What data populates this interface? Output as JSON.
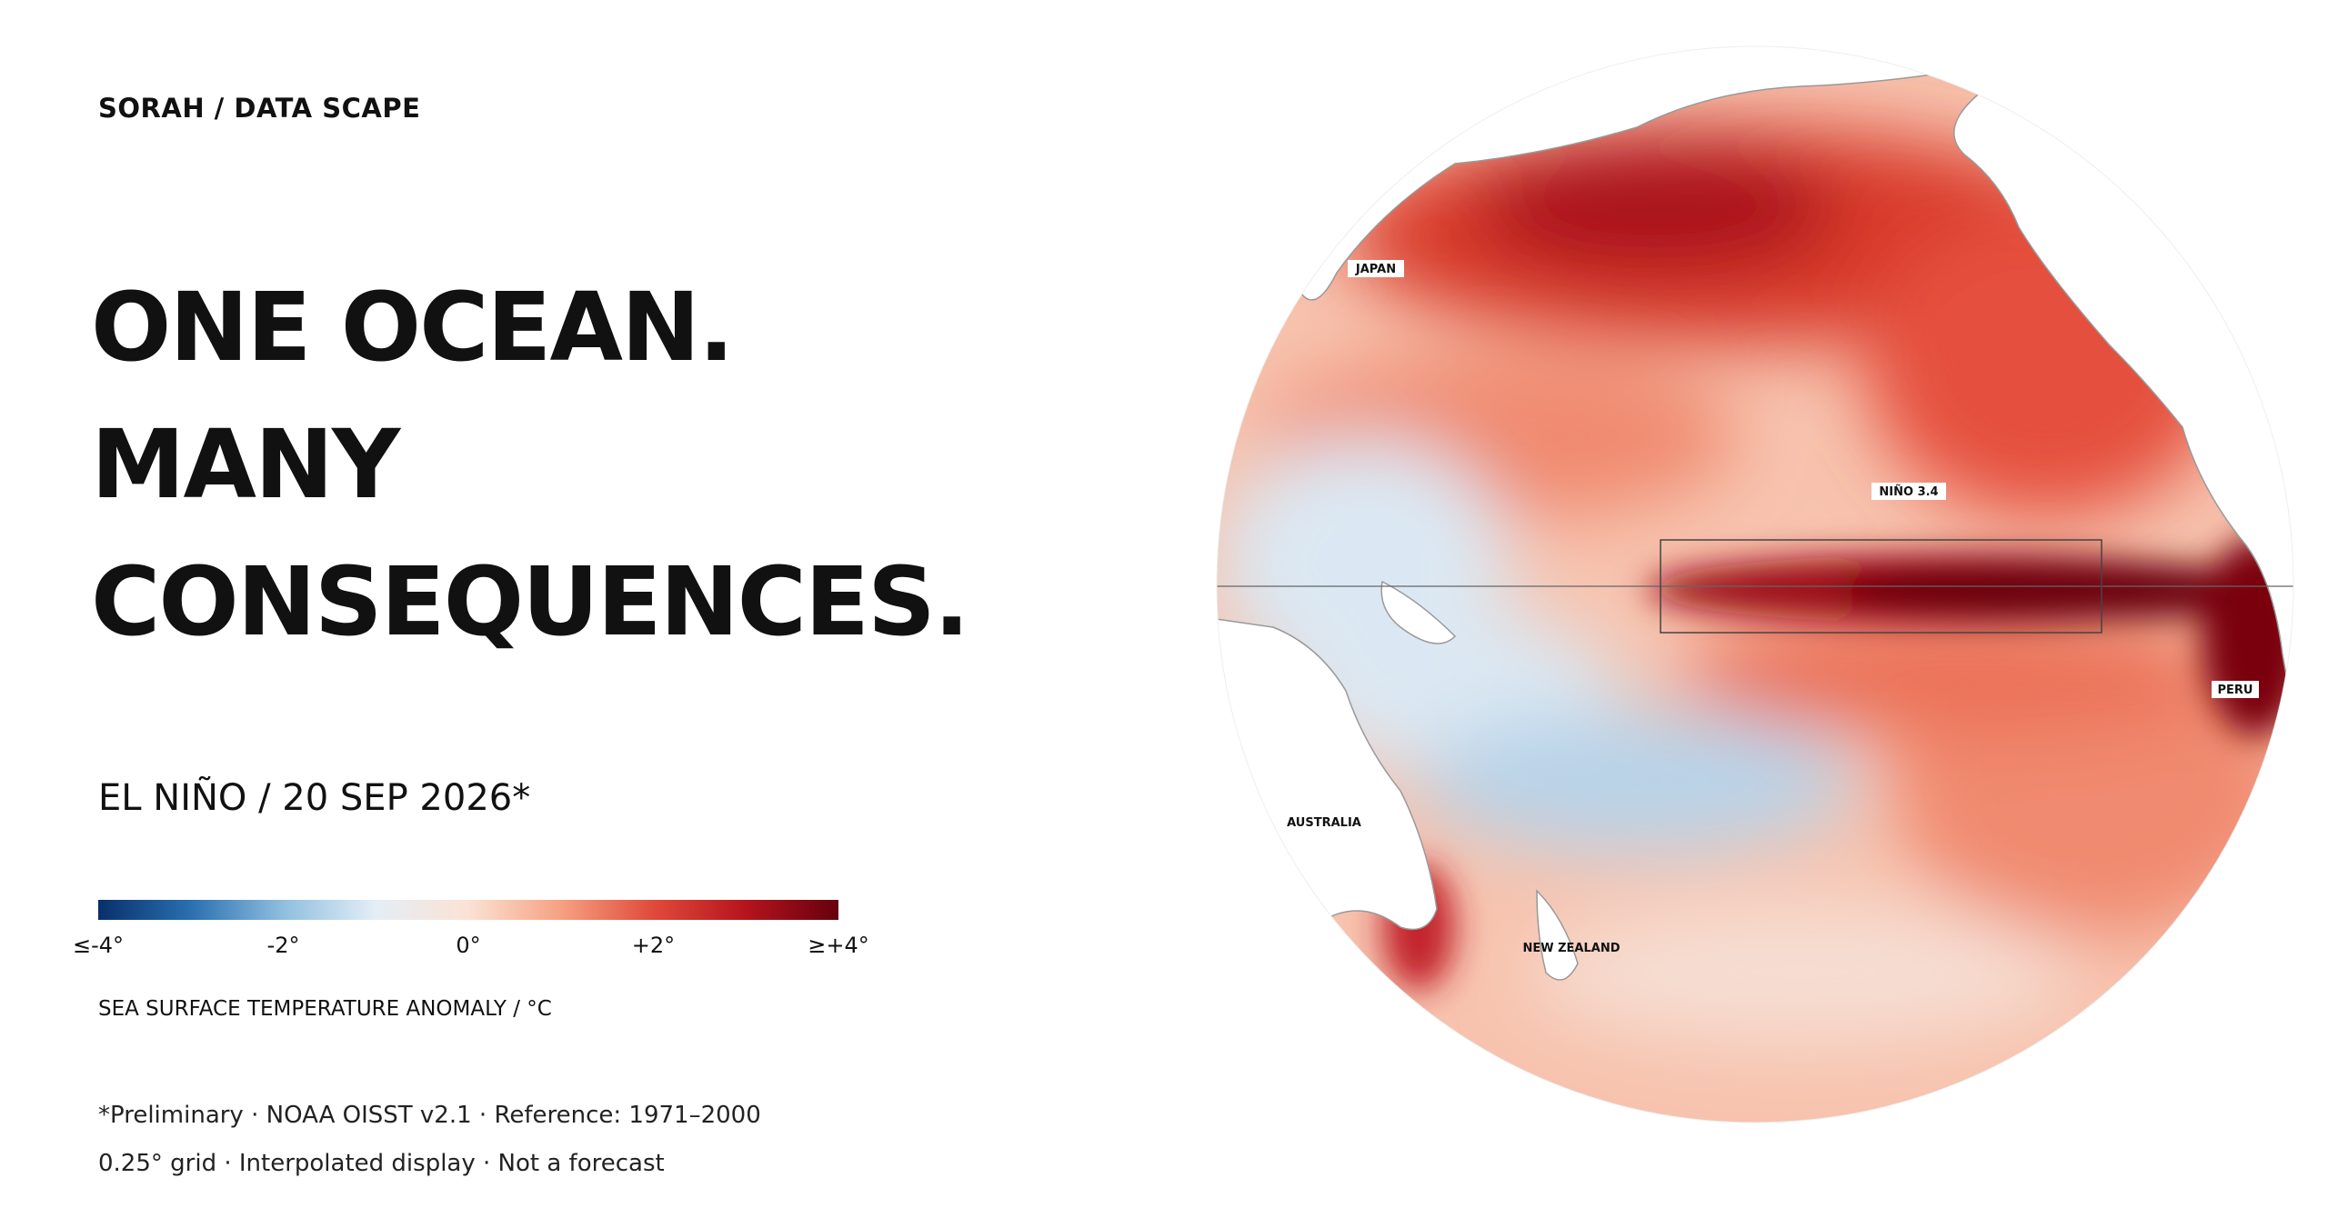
{
  "header": {
    "brand": "SORAH / DATA SCAPE"
  },
  "headline": {
    "lines": [
      "ONE OCEAN.",
      "MANY",
      "CONSEQUENCES."
    ]
  },
  "subtitle": "EL NIÑO / 20 SEP 2026*",
  "colorbar": {
    "min": -4,
    "max": 4,
    "colors": [
      "#08306b",
      "#2a6fb0",
      "#8fbfdf",
      "#e4eef6",
      "#fbe2d4",
      "#f6a182",
      "#e04a3a",
      "#b5141d",
      "#67000d"
    ],
    "ticks": [
      {
        "value": -4,
        "label": "≤-4°"
      },
      {
        "value": -2,
        "label": "-2°"
      },
      {
        "value": 0,
        "label": "0°"
      },
      {
        "value": 2,
        "label": "+2°"
      },
      {
        "value": 4,
        "label": "≥+4°"
      }
    ],
    "label": "SEA SURFACE TEMPERATURE ANOMALY / °C"
  },
  "footnotes": [
    "*Preliminary · NOAA OISST v2.1 · Reference: 1971–2000",
    "0.25° grid · Interpolated display · Not a forecast"
  ],
  "map": {
    "labels": [
      "JAPAN",
      "NIÑO 3.4",
      "PERU",
      "AUSTRALIA",
      "NEW ZEALAND"
    ]
  }
}
